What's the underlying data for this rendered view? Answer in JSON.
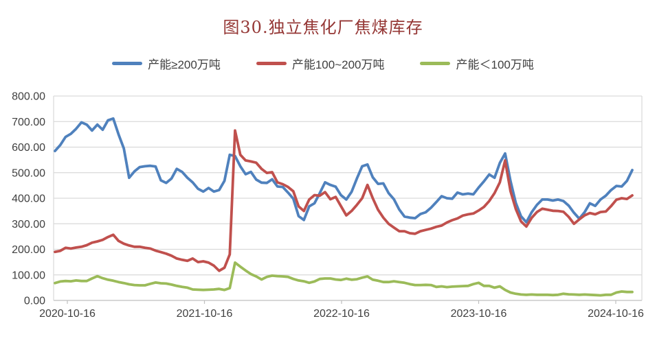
{
  "title": "图30.独立焦化厂焦煤库存",
  "legend": {
    "items": [
      {
        "label": "产能≥200万吨",
        "color": "#4F81BD"
      },
      {
        "label": "产能100~200万吨",
        "color": "#C0504D"
      },
      {
        "label": "产能＜100万吨",
        "color": "#9BBB59"
      }
    ]
  },
  "y_axis": {
    "ticks": [
      "800.00",
      "700.00",
      "600.00",
      "500.00",
      "400.00",
      "300.00",
      "200.00",
      "100.00",
      "0.00"
    ],
    "min": 0,
    "max": 800,
    "step": 100
  },
  "x_axis": {
    "labels": [
      "2020-10-16",
      "2021-10-16",
      "2022-10-16",
      "2023-10-16",
      "2024-10-16"
    ]
  },
  "chart_data": {
    "type": "line",
    "title": "图30.独立焦化厂焦煤库存",
    "x_unit": "biweekly samples from 2020-10-16 to end of 2024",
    "ylim": [
      0,
      800
    ],
    "grid": true,
    "legend_position": "top",
    "grid_color": "#D9D9D9",
    "axis_color": "#BFBFBF",
    "series": [
      {
        "name": "产能≥200万吨",
        "color": "#4F81BD",
        "values": [
          585,
          608,
          640,
          652,
          672,
          697,
          688,
          665,
          688,
          668,
          705,
          712,
          650,
          595,
          480,
          505,
          522,
          525,
          527,
          524,
          470,
          460,
          477,
          515,
          503,
          480,
          462,
          437,
          426,
          440,
          426,
          432,
          468,
          570,
          565,
          525,
          494,
          503,
          473,
          461,
          460,
          474,
          446,
          444,
          422,
          398,
          330,
          315,
          368,
          380,
          420,
          462,
          452,
          445,
          412,
          395,
          425,
          477,
          525,
          532,
          482,
          456,
          458,
          420,
          396,
          356,
          328,
          324,
          322,
          338,
          345,
          363,
          385,
          408,
          400,
          398,
          422,
          415,
          418,
          415,
          442,
          466,
          493,
          480,
          538,
          575,
          468,
          382,
          329,
          306,
          345,
          374,
          395,
          395,
          391,
          395,
          389,
          371,
          343,
          320,
          345,
          380,
          370,
          395,
          410,
          432,
          448,
          446,
          468,
          510
        ]
      },
      {
        "name": "产能100~200万吨",
        "color": "#C0504D",
        "values": [
          190,
          194,
          206,
          203,
          207,
          210,
          216,
          226,
          231,
          237,
          248,
          257,
          233,
          222,
          215,
          210,
          210,
          206,
          203,
          195,
          189,
          183,
          175,
          164,
          159,
          155,
          164,
          150,
          153,
          148,
          136,
          116,
          128,
          180,
          665,
          570,
          548,
          544,
          539,
          515,
          499,
          502,
          462,
          455,
          444,
          427,
          368,
          350,
          395,
          412,
          410,
          424,
          396,
          405,
          369,
          333,
          350,
          374,
          400,
          452,
          400,
          355,
          324,
          300,
          285,
          271,
          271,
          263,
          261,
          271,
          276,
          281,
          288,
          293,
          305,
          314,
          321,
          332,
          337,
          340,
          352,
          366,
          389,
          420,
          462,
          548,
          428,
          358,
          309,
          289,
          323,
          346,
          359,
          355,
          351,
          350,
          347,
          327,
          300,
          317,
          333,
          342,
          337,
          346,
          348,
          369,
          394,
          400,
          397,
          411
        ]
      },
      {
        "name": "产能＜100万吨",
        "color": "#9BBB59",
        "values": [
          68,
          74,
          76,
          75,
          78,
          76,
          76,
          86,
          95,
          87,
          81,
          77,
          72,
          68,
          63,
          60,
          59,
          59,
          65,
          70,
          67,
          66,
          62,
          57,
          53,
          50,
          43,
          42,
          41,
          42,
          43,
          45,
          41,
          48,
          148,
          132,
          117,
          103,
          94,
          82,
          92,
          97,
          95,
          94,
          92,
          84,
          78,
          75,
          69,
          74,
          84,
          86,
          86,
          82,
          80,
          85,
          81,
          83,
          89,
          94,
          81,
          77,
          72,
          72,
          75,
          72,
          69,
          64,
          60,
          60,
          61,
          60,
          53,
          55,
          52,
          54,
          55,
          56,
          57,
          64,
          69,
          57,
          57,
          50,
          55,
          41,
          31,
          26,
          23,
          22,
          23,
          22,
          22,
          22,
          21,
          22,
          26,
          24,
          23,
          22,
          23,
          22,
          21,
          20,
          22,
          22,
          31,
          35,
          33,
          33
        ]
      }
    ]
  }
}
